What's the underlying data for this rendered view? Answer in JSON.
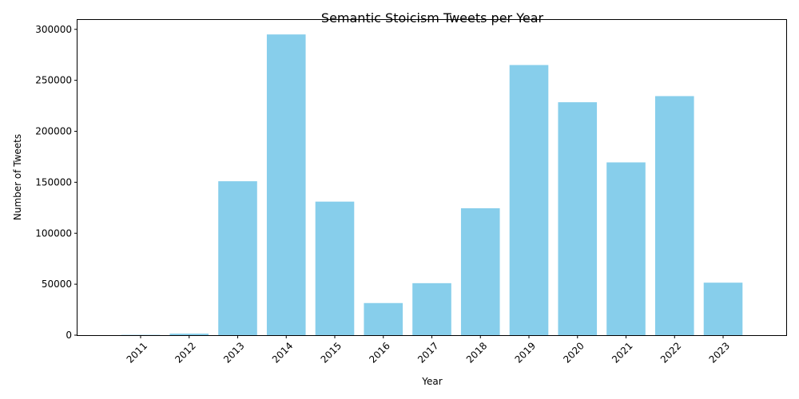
{
  "chart_data": {
    "type": "bar",
    "title": "Semantic Stoicism Tweets per Year",
    "xlabel": "Year",
    "ylabel": "Number of Tweets",
    "categories": [
      "2011",
      "2012",
      "2013",
      "2014",
      "2015",
      "2016",
      "2017",
      "2018",
      "2019",
      "2020",
      "2021",
      "2022",
      "2023"
    ],
    "values": [
      300,
      1500,
      151000,
      295000,
      131000,
      31500,
      51000,
      124500,
      265000,
      228500,
      169500,
      234500,
      51500
    ],
    "ylim": [
      0,
      310000
    ],
    "yticks": [
      0,
      50000,
      100000,
      150000,
      200000,
      250000,
      300000
    ],
    "ytick_labels": [
      "0",
      "50000",
      "100000",
      "150000",
      "200000",
      "250000",
      "300000"
    ],
    "bar_color": "#87ceeb",
    "grid": false,
    "legend": "none"
  }
}
